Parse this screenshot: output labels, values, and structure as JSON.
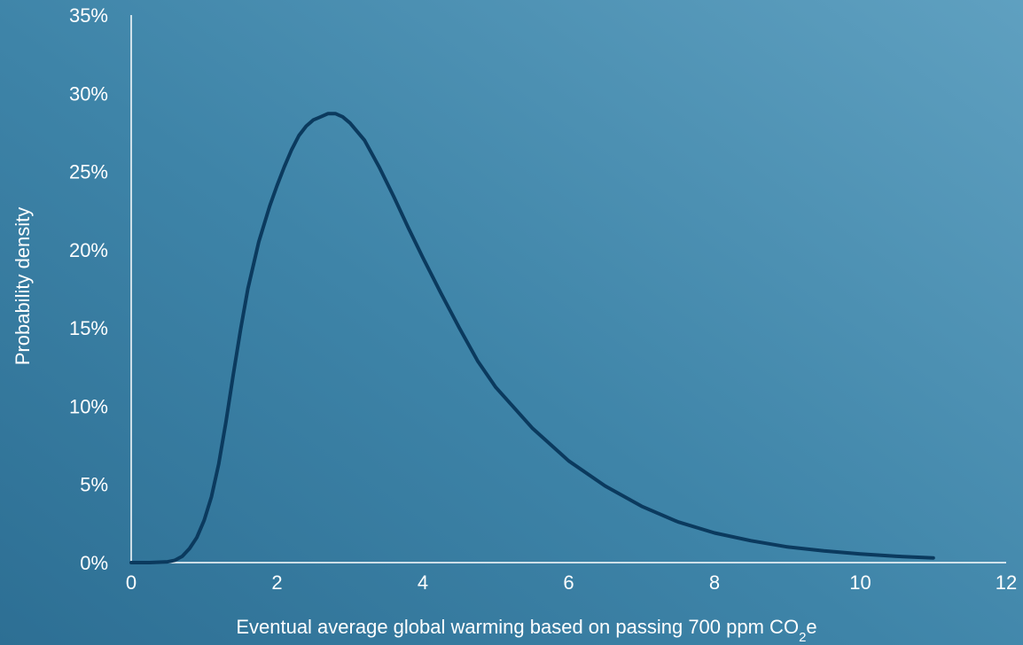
{
  "chart_data": {
    "type": "line",
    "title": "",
    "xlabel": "Eventual average global warming based on passing 700 ppm CO",
    "xlabel_subscript": "2",
    "xlabel_suffix": "e",
    "ylabel": "Probability density",
    "xlim": [
      0,
      12
    ],
    "ylim": [
      0,
      35
    ],
    "x_ticks": [
      0,
      2,
      4,
      6,
      8,
      10,
      12
    ],
    "x_tick_labels": [
      "0",
      "2",
      "4",
      "6",
      "8",
      "10",
      "12"
    ],
    "y_ticks": [
      0,
      5,
      10,
      15,
      20,
      25,
      30,
      35
    ],
    "y_tick_labels": [
      "0%",
      "5%",
      "10%",
      "15%",
      "20%",
      "25%",
      "30%",
      "35%"
    ],
    "grid": false,
    "line_color": "#0b3a5e",
    "axis_color": "#ffffff",
    "series": [
      {
        "x": [
          0,
          0.25,
          0.5,
          0.6,
          0.7,
          0.8,
          0.9,
          1.0,
          1.1,
          1.2,
          1.3,
          1.4,
          1.5,
          1.6,
          1.75,
          1.9,
          2.0,
          2.1,
          2.2,
          2.3,
          2.4,
          2.5,
          2.6,
          2.7,
          2.8,
          2.9,
          3.0,
          3.2,
          3.4,
          3.6,
          3.8,
          4.0,
          4.25,
          4.5,
          4.75,
          5.0,
          5.5,
          6.0,
          6.5,
          7.0,
          7.5,
          8.0,
          8.5,
          9.0,
          9.5,
          10.0,
          10.5,
          11.0
        ],
        "values": [
          0,
          0,
          0.05,
          0.15,
          0.4,
          0.9,
          1.6,
          2.7,
          4.2,
          6.3,
          9.0,
          12.0,
          14.9,
          17.5,
          20.5,
          22.8,
          24.1,
          25.3,
          26.4,
          27.3,
          27.9,
          28.3,
          28.5,
          28.7,
          28.7,
          28.5,
          28.1,
          27.0,
          25.3,
          23.4,
          21.4,
          19.5,
          17.2,
          15.0,
          12.9,
          11.2,
          8.6,
          6.5,
          4.9,
          3.6,
          2.6,
          1.9,
          1.4,
          1.0,
          0.75,
          0.55,
          0.4,
          0.3
        ]
      }
    ]
  }
}
